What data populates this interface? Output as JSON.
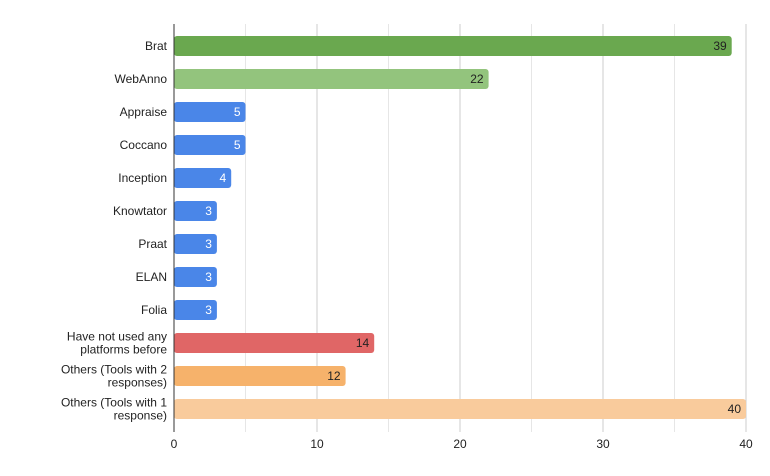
{
  "chart_data": {
    "type": "bar",
    "orientation": "horizontal",
    "categories": [
      [
        "Brat"
      ],
      [
        "WebAnno"
      ],
      [
        "Appraise"
      ],
      [
        "Coccano"
      ],
      [
        "Inception"
      ],
      [
        "Knowtator"
      ],
      [
        "Praat"
      ],
      [
        "ELAN"
      ],
      [
        "Folia"
      ],
      [
        "Have not used any",
        "platforms before"
      ],
      [
        "Others (Tools with 2",
        "responses)"
      ],
      [
        "Others (Tools with 1",
        "response)"
      ]
    ],
    "values": [
      39,
      22,
      5,
      5,
      4,
      3,
      3,
      3,
      3,
      14,
      12,
      40
    ],
    "colors": [
      "#6aa84f",
      "#93c47d",
      "#4a86e8",
      "#4a86e8",
      "#4a86e8",
      "#4a86e8",
      "#4a86e8",
      "#4a86e8",
      "#4a86e8",
      "#e06666",
      "#f6b26b",
      "#f9cb9c"
    ],
    "label_colors": [
      "#222222",
      "#222222",
      "#ffffff",
      "#ffffff",
      "#ffffff",
      "#ffffff",
      "#ffffff",
      "#ffffff",
      "#ffffff",
      "#222222",
      "#222222",
      "#222222"
    ],
    "xlim": [
      0,
      40
    ],
    "xticks": [
      0,
      10,
      20,
      30,
      40
    ],
    "grid": "vertical",
    "title": "",
    "xlabel": "",
    "ylabel": "",
    "legend": "none"
  }
}
